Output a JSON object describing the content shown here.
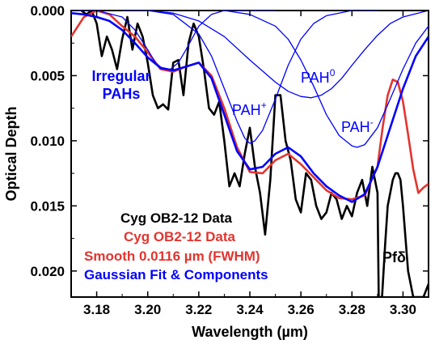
{
  "chart_data": {
    "type": "line",
    "xlabel": "Wavelength (µm)",
    "ylabel": "Optical Depth",
    "xlim": [
      3.17,
      3.31
    ],
    "ylim": [
      0.022,
      0.0
    ],
    "y_inverted": true,
    "x_ticks": [
      "3.18",
      "3.20",
      "3.22",
      "3.24",
      "3.26",
      "3.28",
      "3.30"
    ],
    "x_tick_values": [
      3.18,
      3.2,
      3.22,
      3.24,
      3.26,
      3.28,
      3.3
    ],
    "y_ticks": [
      "0.000",
      "0.005",
      "0.010",
      "0.015",
      "0.020"
    ],
    "y_tick_values": [
      0.0,
      0.005,
      0.01,
      0.015,
      0.02
    ],
    "legend": [
      {
        "text": "Cyg OB2-12 Data",
        "color": "#000000"
      },
      {
        "text": "Cyg OB2-12 Data",
        "color": "#e3342f"
      },
      {
        "text": "Smooth 0.0116 µm (FWHM)",
        "color": "#e3342f"
      },
      {
        "text": "Gaussian Fit & Components",
        "color": "#0000ff"
      }
    ],
    "annotations": {
      "irregular_1": "Irregular",
      "irregular_2": "PAHs",
      "pah_plus_base": "PAH",
      "pah_plus_sup": "+",
      "pah_zero_base": "PAH",
      "pah_zero_sup": "0",
      "pah_minus_base": "PAH",
      "pah_minus_sup": "-",
      "pfdelta": "Pfδ"
    },
    "series": [
      {
        "color": "#000000",
        "x": [
          3.17,
          3.172,
          3.174,
          3.176,
          3.178,
          3.18,
          3.182,
          3.184,
          3.186,
          3.188,
          3.19,
          3.192,
          3.194,
          3.196,
          3.198,
          3.2,
          3.202,
          3.204,
          3.206,
          3.208,
          3.21,
          3.212,
          3.214,
          3.216,
          3.218,
          3.22,
          3.222,
          3.224,
          3.226,
          3.228,
          3.23,
          3.232,
          3.234,
          3.236,
          3.238,
          3.24,
          3.242,
          3.244,
          3.246,
          3.248,
          3.25,
          3.252,
          3.254,
          3.256,
          3.258,
          3.26,
          3.262,
          3.264,
          3.266,
          3.268,
          3.27,
          3.272,
          3.274,
          3.276,
          3.278,
          3.28,
          3.282,
          3.284,
          3.286,
          3.288,
          3.29,
          3.2905,
          3.2918,
          3.293,
          3.294,
          3.296,
          3.297,
          3.298,
          3.299,
          3.3,
          3.302,
          3.304,
          3.306,
          3.308,
          3.31
        ],
        "y": [
          0.0,
          -0.0005,
          0.0,
          0.0003,
          0.0,
          0.001,
          0.0035,
          0.002,
          0.003,
          0.0045,
          0.0022,
          0.0005,
          0.003,
          0.001,
          0.002,
          0.004,
          0.0065,
          0.0075,
          0.0072,
          0.0076,
          0.004,
          0.0038,
          0.0065,
          0.0025,
          0.001,
          0.002,
          0.0045,
          0.0075,
          0.008,
          0.007,
          0.01,
          0.0135,
          0.0125,
          0.0135,
          0.011,
          0.009,
          0.012,
          0.014,
          0.0172,
          0.013,
          0.0065,
          0.0065,
          0.01,
          0.0115,
          0.0145,
          0.0155,
          0.0125,
          0.013,
          0.015,
          0.016,
          0.0155,
          0.014,
          0.0145,
          0.016,
          0.015,
          0.0158,
          0.014,
          0.013,
          0.015,
          0.012,
          0.014,
          0.022,
          0.022,
          0.018,
          0.015,
          0.013,
          0.0125,
          0.0125,
          0.013,
          0.015,
          0.02,
          0.022,
          0.022,
          0.022,
          0.021
        ]
      },
      {
        "color": "#e3342f",
        "x": [
          3.17,
          3.175,
          3.18,
          3.185,
          3.19,
          3.195,
          3.2,
          3.205,
          3.21,
          3.215,
          3.22,
          3.225,
          3.23,
          3.235,
          3.24,
          3.245,
          3.25,
          3.255,
          3.26,
          3.265,
          3.27,
          3.275,
          3.28,
          3.285,
          3.29,
          3.292,
          3.294,
          3.296,
          3.298,
          3.3,
          3.302,
          3.304,
          3.306,
          3.308,
          3.31
        ],
        "y": [
          0.002,
          0.0005,
          0.0,
          0.0003,
          0.0012,
          0.002,
          0.0032,
          0.0045,
          0.0047,
          0.0043,
          0.004,
          0.005,
          0.0075,
          0.0105,
          0.0124,
          0.0125,
          0.0115,
          0.011,
          0.0118,
          0.0128,
          0.0138,
          0.0144,
          0.0145,
          0.0142,
          0.012,
          0.009,
          0.0065,
          0.0053,
          0.0055,
          0.007,
          0.0095,
          0.0122,
          0.014,
          0.0136,
          0.0133
        ]
      },
      {
        "color": "#0000ff",
        "x": [
          3.17,
          3.175,
          3.18,
          3.185,
          3.19,
          3.195,
          3.2,
          3.205,
          3.21,
          3.215,
          3.22,
          3.225,
          3.23,
          3.235,
          3.24,
          3.245,
          3.25,
          3.255,
          3.26,
          3.265,
          3.27,
          3.275,
          3.28,
          3.285,
          3.29,
          3.295,
          3.3,
          3.305,
          3.31
        ],
        "y": [
          0.0002,
          0.0003,
          0.0005,
          0.0008,
          0.0015,
          0.0025,
          0.0036,
          0.0044,
          0.0046,
          0.0043,
          0.004,
          0.0052,
          0.008,
          0.0108,
          0.0122,
          0.012,
          0.011,
          0.0105,
          0.0112,
          0.0125,
          0.0135,
          0.0142,
          0.0147,
          0.0141,
          0.012,
          0.009,
          0.006,
          0.0035,
          0.002
        ]
      },
      {
        "color": "#0000ff",
        "component": true,
        "x": [
          3.17,
          3.18,
          3.19,
          3.195,
          3.2,
          3.203,
          3.206,
          3.209,
          3.212,
          3.215,
          3.22,
          3.225,
          3.23,
          3.24,
          3.25
        ],
        "y": [
          0.0,
          0.0,
          0.0005,
          0.0015,
          0.003,
          0.004,
          0.0045,
          0.0045,
          0.004,
          0.003,
          0.0012,
          0.0003,
          0.0,
          0.0,
          0.0
        ]
      },
      {
        "color": "#0000ff",
        "component": true,
        "x": [
          3.19,
          3.2,
          3.21,
          3.22,
          3.225,
          3.23,
          3.235,
          3.238,
          3.24,
          3.242,
          3.245,
          3.25,
          3.255,
          3.26,
          3.265,
          3.27,
          3.28,
          3.29
        ],
        "y": [
          0.0,
          0.0,
          0.0003,
          0.0018,
          0.0035,
          0.006,
          0.0085,
          0.0098,
          0.0102,
          0.01,
          0.0092,
          0.0068,
          0.0042,
          0.0022,
          0.001,
          0.0004,
          0.0,
          0.0
        ]
      },
      {
        "color": "#0000ff",
        "component": true,
        "x": [
          3.2,
          3.21,
          3.22,
          3.23,
          3.24,
          3.25,
          3.255,
          3.26,
          3.264,
          3.268,
          3.272,
          3.276,
          3.28,
          3.285,
          3.29,
          3.295,
          3.3,
          3.31
        ],
        "y": [
          0.0,
          0.0002,
          0.0008,
          0.002,
          0.0038,
          0.0055,
          0.0062,
          0.0066,
          0.0067,
          0.0065,
          0.006,
          0.0052,
          0.0042,
          0.003,
          0.0019,
          0.001,
          0.0005,
          0.0
        ]
      },
      {
        "color": "#0000ff",
        "component": true,
        "x": [
          3.23,
          3.24,
          3.25,
          3.255,
          3.26,
          3.265,
          3.27,
          3.275,
          3.28,
          3.282,
          3.285,
          3.29,
          3.295,
          3.3,
          3.305,
          3.31
        ],
        "y": [
          0.0,
          0.0003,
          0.0012,
          0.0022,
          0.0038,
          0.0058,
          0.008,
          0.0096,
          0.0104,
          0.0105,
          0.0103,
          0.009,
          0.0068,
          0.0045,
          0.0025,
          0.0012
        ]
      }
    ]
  }
}
